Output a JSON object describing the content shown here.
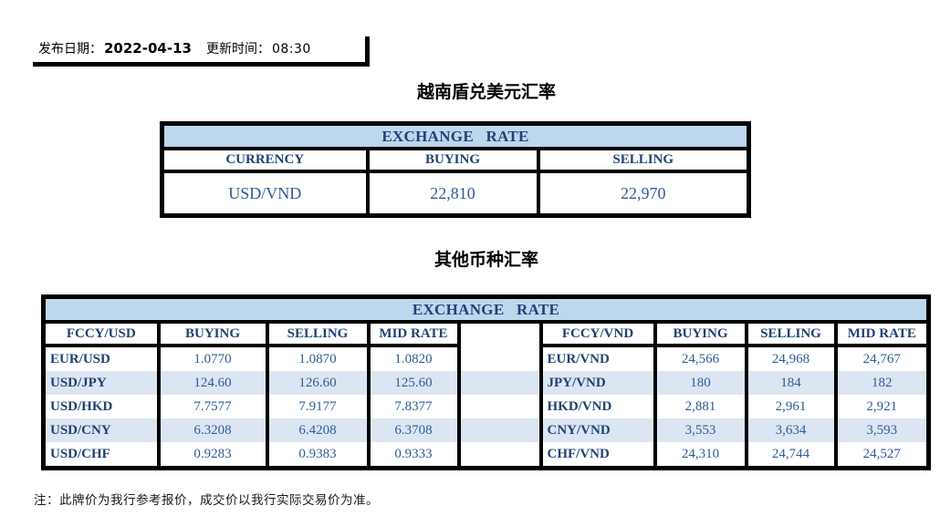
{
  "page": {
    "publish_label": "发布日期：",
    "publish_date": "2022-04-13",
    "update_label": "更新时间：",
    "update_time": "08:30",
    "note": "注：此牌价为我行参考报价，成交价以我行实际交易价为准。"
  },
  "section1": {
    "title": "越南盾兑美元汇率",
    "table": {
      "header": "EXCHANGE RATE",
      "columns": [
        "CURRENCY",
        "BUYING",
        "SELLING"
      ],
      "rows": [
        [
          "USD/VND",
          "22,810",
          "22,970"
        ]
      ]
    }
  },
  "section2": {
    "title": "其他币种汇率",
    "table": {
      "header": "EXCHANGE RATE",
      "left_columns": [
        "FCCY/USD",
        "BUYING",
        "SELLING",
        "MID RATE"
      ],
      "right_columns": [
        "FCCY/VND",
        "BUYING",
        "SELLING",
        "MID RATE"
      ],
      "rows": [
        {
          "left": [
            "EUR/USD",
            "1.0770",
            "1.0870",
            "1.0820"
          ],
          "right": [
            "EUR/VND",
            "24,566",
            "24,968",
            "24,767"
          ]
        },
        {
          "left": [
            "USD/JPY",
            "124.60",
            "126.60",
            "125.60"
          ],
          "right": [
            "JPY/VND",
            "180",
            "184",
            "182"
          ]
        },
        {
          "left": [
            "USD/HKD",
            "7.7577",
            "7.9177",
            "7.8377"
          ],
          "right": [
            "HKD/VND",
            "2,881",
            "2,961",
            "2,921"
          ]
        },
        {
          "left": [
            "USD/CNY",
            "6.3208",
            "6.4208",
            "6.3708"
          ],
          "right": [
            "CNY/VND",
            "3,553",
            "3,634",
            "3,593"
          ]
        },
        {
          "left": [
            "USD/CHF",
            "0.9283",
            "0.9383",
            "0.9333"
          ],
          "right": [
            "CHF/VND",
            "24,310",
            "24,744",
            "24,527"
          ]
        }
      ]
    }
  },
  "colors": {
    "header_band": "#BDD7EE",
    "row_stripe": "#DCE6F2",
    "heading_text": "#1F4273",
    "value_text": "#2E5B97",
    "border": "#000000"
  }
}
